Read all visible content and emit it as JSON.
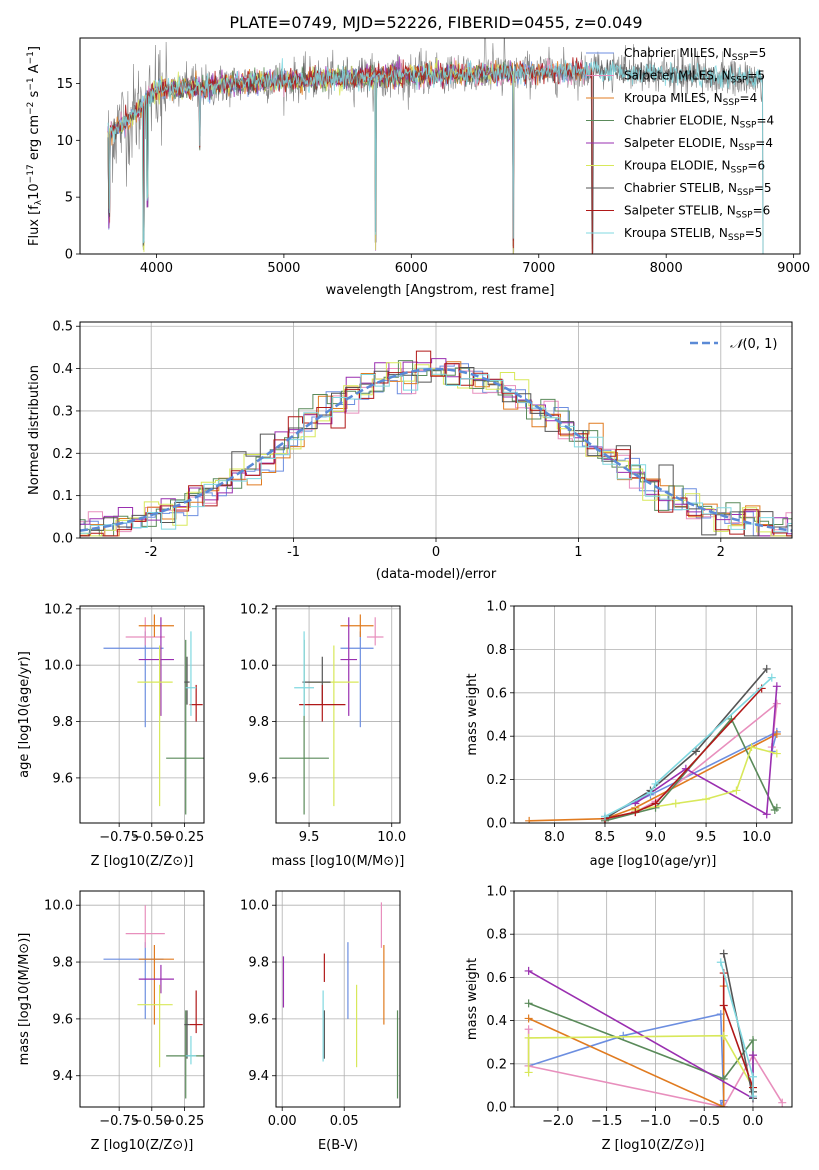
{
  "figure_title": "PLATE=0749, MJD=52226, FIBERID=0455, z=0.049",
  "colors": {
    "data": "#808080",
    "models": [
      "#6c8ee0",
      "#e88fbd",
      "#e07b20",
      "#5a8a5a",
      "#9a2fb0",
      "#d8e85a",
      "#555555",
      "#b01818",
      "#80d8e0"
    ],
    "gauss": "#5b8ad6",
    "grid": "#b0b0b0"
  },
  "chart_data": [
    {
      "id": "spectrum",
      "type": "line",
      "xlabel": "wavelength [Angstrom, rest frame]",
      "ylabel": "Flux [f",
      "xlim": [
        3400,
        9050
      ],
      "ylim": [
        0,
        19
      ],
      "xticks": [
        4000,
        5000,
        6000,
        7000,
        8000,
        9000
      ],
      "yticks": [
        0,
        5,
        10,
        15
      ],
      "grid": false,
      "legend_position": "top-right",
      "legend": [
        {
          "name": "Chabrier MILES",
          "nssp": "5"
        },
        {
          "name": "Salpeter MILES",
          "nssp": "5"
        },
        {
          "name": "Kroupa MILES",
          "nssp": "4"
        },
        {
          "name": "Chabrier ELODIE",
          "nssp": "4"
        },
        {
          "name": "Salpeter ELODIE",
          "nssp": "4"
        },
        {
          "name": "Kroupa ELODIE",
          "nssp": "6"
        },
        {
          "name": "Chabrier STELIB",
          "nssp": "5"
        },
        {
          "name": "Salpeter STELIB",
          "nssp": "6"
        },
        {
          "name": "Kroupa STELIB",
          "nssp": "5"
        }
      ],
      "continuum": [
        [
          3620,
          10.5
        ],
        [
          3800,
          12
        ],
        [
          4000,
          14.5
        ],
        [
          4300,
          14.6
        ],
        [
          4600,
          15.0
        ],
        [
          5000,
          15.3
        ],
        [
          5500,
          15.5
        ],
        [
          6000,
          15.7
        ],
        [
          6500,
          15.8
        ],
        [
          7000,
          16.0
        ],
        [
          7500,
          16.1
        ],
        [
          8000,
          15.8
        ],
        [
          8500,
          15.5
        ],
        [
          8750,
          15.3
        ]
      ],
      "data_range": [
        3620,
        8760
      ],
      "model_ranges": [
        [
          3620,
          7420
        ],
        [
          3620,
          7420
        ],
        [
          3620,
          7420
        ],
        [
          3620,
          6800
        ],
        [
          3620,
          6800
        ],
        [
          3620,
          6800
        ],
        [
          3620,
          8760
        ],
        [
          3620,
          7420
        ],
        [
          3620,
          8760
        ]
      ],
      "dips": [
        [
          3630,
          2
        ],
        [
          3900,
          0
        ],
        [
          3930,
          4
        ],
        [
          4340,
          9
        ],
        [
          5720,
          0
        ],
        [
          6800,
          0
        ],
        [
          7420,
          0
        ]
      ],
      "spikes": [
        [
          6580,
          19
        ],
        [
          6730,
          19
        ]
      ]
    },
    {
      "id": "residuals",
      "type": "histogram",
      "xlabel": "(data-model)/error",
      "ylabel": "Normed distribution",
      "xlim": [
        -2.5,
        2.5
      ],
      "ylim": [
        0,
        0.51
      ],
      "xticks": [
        -2,
        -1,
        0,
        1,
        2
      ],
      "yticks": [
        0,
        0.1,
        0.2,
        0.3,
        0.4,
        0.5
      ],
      "grid": true,
      "bin_width": 0.1,
      "legend_position": "top-right",
      "legend": [
        "N(0,1)"
      ],
      "gauss": {
        "mu": 0,
        "sigma": 1
      }
    },
    {
      "id": "z-age",
      "type": "errorbar",
      "xlabel": "Z [log10(Z/Z⊙)]",
      "ylabel": "age [log10(age/yr)]",
      "xlim": [
        -1.05,
        -0.1
      ],
      "ylim": [
        9.44,
        10.21
      ],
      "xticks": [
        -0.75,
        -0.5,
        -0.25
      ],
      "xticklabels": [
        "−0.75",
        "−0.50",
        "−0.25"
      ],
      "yticks": [
        9.6,
        9.8,
        10.0,
        10.2
      ],
      "grid": true,
      "points": [
        {
          "x": -0.55,
          "xerr": [
            0.32,
            0.14
          ],
          "y": 10.06,
          "yerr": [
            0.28,
            0.06
          ]
        },
        {
          "x": -0.55,
          "xerr": [
            0.15,
            0.15
          ],
          "y": 10.1,
          "yerr": [
            0.03,
            0.07
          ]
        },
        {
          "x": -0.48,
          "xerr": [
            0.12,
            0.15
          ],
          "y": 10.14,
          "yerr": [
            0.04,
            0.04
          ]
        },
        {
          "x": -0.24,
          "xerr": [
            0.15,
            0.15
          ],
          "y": 9.67,
          "yerr": [
            0.2,
            0.42
          ]
        },
        {
          "x": -0.43,
          "xerr": [
            0.17,
            0.1
          ],
          "y": 10.02,
          "yerr": [
            0.2,
            0.15
          ]
        },
        {
          "x": -0.44,
          "xerr": [
            0.17,
            0.1
          ],
          "y": 9.94,
          "yerr": [
            0.44,
            0.13
          ]
        },
        {
          "x": -0.23,
          "xerr": [
            0.02,
            0.02
          ],
          "y": 9.94,
          "yerr": [
            0.08,
            0.09
          ]
        },
        {
          "x": -0.16,
          "xerr": [
            0.05,
            0.05
          ],
          "y": 9.86,
          "yerr": [
            0.06,
            0.07
          ]
        },
        {
          "x": -0.2,
          "xerr": [
            0.04,
            0.04
          ],
          "y": 9.92,
          "yerr": [
            0.1,
            0.2
          ]
        }
      ]
    },
    {
      "id": "mass-age",
      "type": "errorbar",
      "xlabel": "mass [log10(M/M⊙)]",
      "ylabel": "",
      "xlim": [
        9.3,
        10.05
      ],
      "ylim": [
        9.44,
        10.21
      ],
      "xticks": [
        9.5,
        10.0
      ],
      "xticklabels": [
        "9.5",
        "10.0"
      ],
      "yticks": [
        9.6,
        9.8,
        10.0,
        10.2
      ],
      "grid": true,
      "points": [
        {
          "x": 9.81,
          "xerr": [
            0.12,
            0.08
          ],
          "y": 10.06,
          "yerr": [
            0.28,
            0.06
          ]
        },
        {
          "x": 9.9,
          "xerr": [
            0.05,
            0.05
          ],
          "y": 10.1,
          "yerr": [
            0.03,
            0.07
          ]
        },
        {
          "x": 9.81,
          "xerr": [
            0.12,
            0.08
          ],
          "y": 10.14,
          "yerr": [
            0.04,
            0.04
          ]
        },
        {
          "x": 9.47,
          "xerr": [
            0.15,
            0.15
          ],
          "y": 9.67,
          "yerr": [
            0.2,
            0.42
          ]
        },
        {
          "x": 9.74,
          "xerr": [
            0.05,
            0.05
          ],
          "y": 10.02,
          "yerr": [
            0.2,
            0.15
          ]
        },
        {
          "x": 9.65,
          "xerr": [
            0.15,
            0.15
          ],
          "y": 9.94,
          "yerr": [
            0.44,
            0.13
          ]
        },
        {
          "x": 9.58,
          "xerr": [
            0.12,
            0.05
          ],
          "y": 9.94,
          "yerr": [
            0.08,
            0.09
          ]
        },
        {
          "x": 9.58,
          "xerr": [
            0.14,
            0.14
          ],
          "y": 9.86,
          "yerr": [
            0.06,
            0.07
          ]
        },
        {
          "x": 9.47,
          "xerr": [
            0.06,
            0.06
          ],
          "y": 9.92,
          "yerr": [
            0.1,
            0.2
          ]
        }
      ]
    },
    {
      "id": "age-weight",
      "type": "line",
      "xlabel": "age [log10(age/yr)]",
      "ylabel": "mass weight",
      "xlim": [
        7.6,
        10.35
      ],
      "ylim": [
        0,
        1.0
      ],
      "xticks": [
        8.0,
        8.5,
        9.0,
        9.5,
        10.0
      ],
      "xticklabels": [
        "8.0",
        "8.5",
        "9.0",
        "9.5",
        "10.0"
      ],
      "yticks": [
        0,
        0.2,
        0.4,
        0.6,
        0.8,
        1.0
      ],
      "grid": true,
      "series": [
        {
          "x": [
            8.5,
            8.95,
            10.2,
            10.15
          ],
          "y": [
            0.03,
            0.13,
            0.42,
            0.33
          ]
        },
        {
          "x": [
            8.5,
            8.8,
            9.0,
            10.2,
            10.15
          ],
          "y": [
            0.01,
            0.05,
            0.1,
            0.55,
            0.35
          ]
        },
        {
          "x": [
            7.75,
            8.5,
            8.8,
            10.2
          ],
          "y": [
            0.01,
            0.02,
            0.07,
            0.41
          ]
        },
        {
          "x": [
            8.5,
            9.0,
            9.75,
            10.18,
            10.2
          ],
          "y": [
            0.01,
            0.07,
            0.48,
            0.06,
            0.07
          ]
        },
        {
          "x": [
            8.8,
            9.3,
            10.1,
            10.2
          ],
          "y": [
            0.09,
            0.25,
            0.04,
            0.63
          ]
        },
        {
          "x": [
            8.8,
            9.2,
            9.5,
            9.8,
            9.95,
            10.2
          ],
          "y": [
            0.06,
            0.09,
            0.11,
            0.15,
            0.35,
            0.32
          ]
        },
        {
          "x": [
            8.5,
            8.95,
            9.4,
            10.1
          ],
          "y": [
            0.02,
            0.15,
            0.33,
            0.71
          ]
        },
        {
          "x": [
            8.5,
            8.8,
            9.0,
            10.05
          ],
          "y": [
            0.02,
            0.05,
            0.09,
            0.62
          ]
        },
        {
          "x": [
            8.5,
            8.95,
            9.0,
            10.15
          ],
          "y": [
            0.03,
            0.14,
            0.18,
            0.67
          ]
        }
      ]
    },
    {
      "id": "z-mass",
      "type": "errorbar",
      "xlabel": "Z [log10(Z/Z⊙)]",
      "ylabel": "mass [log10(M/M⊙)]",
      "xlim": [
        -1.05,
        -0.1
      ],
      "ylim": [
        9.29,
        10.05
      ],
      "xticks": [
        -0.75,
        -0.5,
        -0.25
      ],
      "xticklabels": [
        "−0.75",
        "−0.50",
        "−0.25"
      ],
      "yticks": [
        9.4,
        9.6,
        9.8,
        10.0
      ],
      "grid": true,
      "points": [
        {
          "x": -0.55,
          "xerr": [
            0.32,
            0.14
          ],
          "y": 9.81,
          "yerr": [
            0.21,
            0.06
          ]
        },
        {
          "x": -0.55,
          "xerr": [
            0.15,
            0.15
          ],
          "y": 9.9,
          "yerr": [
            0.05,
            0.1
          ]
        },
        {
          "x": -0.48,
          "xerr": [
            0.12,
            0.15
          ],
          "y": 9.81,
          "yerr": [
            0.23,
            0.05
          ]
        },
        {
          "x": -0.24,
          "xerr": [
            0.15,
            0.15
          ],
          "y": 9.47,
          "yerr": [
            0.15,
            0.16
          ]
        },
        {
          "x": -0.43,
          "xerr": [
            0.17,
            0.1
          ],
          "y": 9.74,
          "yerr": [
            0.05,
            0.05
          ]
        },
        {
          "x": -0.44,
          "xerr": [
            0.17,
            0.1
          ],
          "y": 9.65,
          "yerr": [
            0.22,
            0.07
          ]
        },
        {
          "x": -0.23,
          "xerr": [
            0.02,
            0.02
          ],
          "y": 9.58,
          "yerr": [
            0.12,
            0.05
          ]
        },
        {
          "x": -0.16,
          "xerr": [
            0.05,
            0.05
          ],
          "y": 9.58,
          "yerr": [
            0.03,
            0.12
          ]
        },
        {
          "x": -0.2,
          "xerr": [
            0.04,
            0.04
          ],
          "y": 9.47,
          "yerr": [
            0.03,
            0.07
          ]
        }
      ]
    },
    {
      "id": "ebv-mass",
      "type": "errorbar",
      "xlabel": "E(B-V)",
      "ylabel": "",
      "xlim": [
        -0.005,
        0.095
      ],
      "ylim": [
        9.29,
        10.05
      ],
      "xticks": [
        0.0,
        0.05
      ],
      "xticklabels": [
        "0.00",
        "0.05"
      ],
      "yticks": [
        9.4,
        9.6,
        9.8,
        10.0
      ],
      "grid": true,
      "points": [
        {
          "x": 0.053,
          "xerr": [
            0,
            0
          ],
          "y": 9.81,
          "yerr": [
            0.21,
            0.06
          ]
        },
        {
          "x": 0.08,
          "xerr": [
            0,
            0
          ],
          "y": 9.9,
          "yerr": [
            0.05,
            0.11
          ]
        },
        {
          "x": 0.082,
          "xerr": [
            0,
            0
          ],
          "y": 9.81,
          "yerr": [
            0.23,
            0.05
          ]
        },
        {
          "x": 0.093,
          "xerr": [
            0,
            0
          ],
          "y": 9.47,
          "yerr": [
            0.15,
            0.16
          ]
        },
        {
          "x": 0.001,
          "xerr": [
            0,
            0
          ],
          "y": 9.74,
          "yerr": [
            0.1,
            0.08
          ]
        },
        {
          "x": 0.06,
          "xerr": [
            0,
            0
          ],
          "y": 9.65,
          "yerr": [
            0.22,
            0.07
          ]
        },
        {
          "x": 0.034,
          "xerr": [
            0,
            0
          ],
          "y": 9.58,
          "yerr": [
            0.12,
            0.05
          ]
        },
        {
          "x": 0.034,
          "xerr": [
            0,
            0
          ],
          "y": 9.78,
          "yerr": [
            0.05,
            0.05
          ]
        },
        {
          "x": 0.033,
          "xerr": [
            0,
            0
          ],
          "y": 9.5,
          "yerr": [
            0.05,
            0.2
          ]
        }
      ]
    },
    {
      "id": "z-weight",
      "type": "line",
      "xlabel": "Z [log10(Z/Z⊙)]",
      "ylabel": "mass weight",
      "xlim": [
        -2.45,
        0.4
      ],
      "ylim": [
        0,
        1.0
      ],
      "xticks": [
        -2.0,
        -1.5,
        -1.0,
        -0.5,
        0.0
      ],
      "xticklabels": [
        "−2.0",
        "−1.5",
        "−1.0",
        "−0.5",
        "0.0"
      ],
      "yticks": [
        0,
        0.2,
        0.4,
        0.6,
        0.8,
        1.0
      ],
      "grid": true,
      "series": [
        {
          "x": [
            -2.3,
            -1.33,
            -0.33,
            -0.3,
            -0.33
          ],
          "y": [
            0.19,
            0.33,
            0.43,
            0.03,
            0.01
          ]
        },
        {
          "x": [
            -2.3,
            -2.3,
            -0.3,
            0.0,
            0.3
          ],
          "y": [
            0.36,
            0.19,
            0.0,
            0.24,
            0.02
          ]
        },
        {
          "x": [
            -2.3,
            -0.3,
            -0.3
          ],
          "y": [
            0.41,
            0.0,
            0.56
          ]
        },
        {
          "x": [
            -2.3,
            -0.3,
            0.0,
            0.0
          ],
          "y": [
            0.48,
            0.13,
            0.31,
            0.07
          ]
        },
        {
          "x": [
            -2.3,
            0.0,
            0.0
          ],
          "y": [
            0.63,
            0.04,
            0.24
          ]
        },
        {
          "x": [
            -2.3,
            -2.3,
            -0.3,
            0.0
          ],
          "y": [
            0.16,
            0.32,
            0.33,
            0.09
          ]
        },
        {
          "x": [
            -0.3,
            0.0,
            0.0
          ],
          "y": [
            0.71,
            0.04,
            0.07
          ]
        },
        {
          "x": [
            -0.3,
            -0.3,
            0.0
          ],
          "y": [
            0.62,
            0.47,
            0.09
          ]
        },
        {
          "x": [
            -0.33,
            0.0,
            0.0
          ],
          "y": [
            0.67,
            0.14,
            0.05
          ]
        }
      ]
    }
  ]
}
